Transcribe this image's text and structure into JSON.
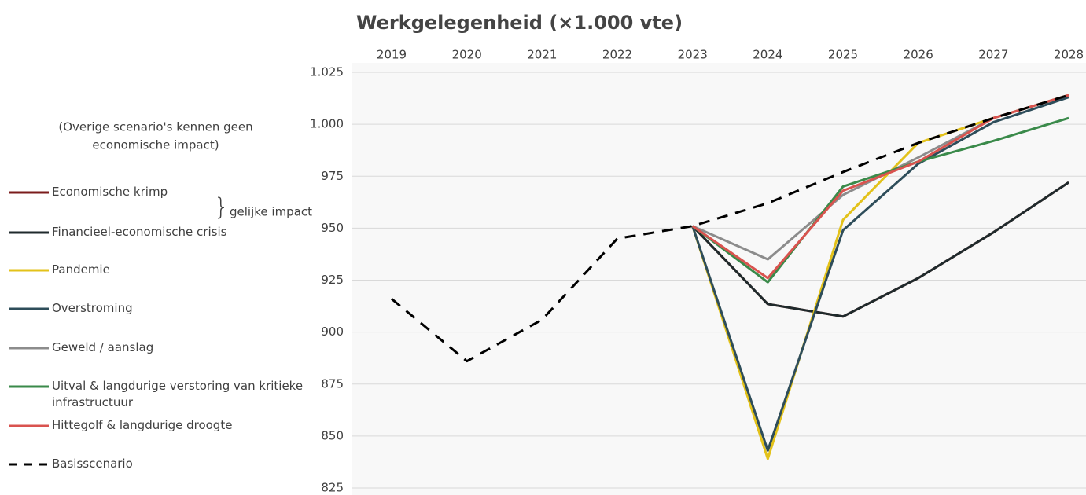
{
  "chart_data": {
    "type": "line",
    "title": "Werkgelegenheid (×1.000 vte)",
    "annotations": [
      {
        "lines": [
          "(Overige scenario's kennen geen",
          "economische impact)"
        ]
      },
      {
        "text": "gelijke impact"
      }
    ],
    "categories": [
      "2019",
      "2020",
      "2021",
      "2022",
      "2023",
      "2024",
      "2025",
      "2026",
      "2027",
      "2028"
    ],
    "series": [
      {
        "name": "Economische krimp",
        "color": "#7b1c1c",
        "values": [
          null,
          null,
          null,
          null,
          951,
          913.5,
          907.5,
          926,
          948,
          972
        ]
      },
      {
        "name": "Financieel-economische crisis",
        "color": "#1f2a2c",
        "values": [
          null,
          null,
          null,
          null,
          951,
          913.5,
          907.5,
          926,
          948,
          972
        ]
      },
      {
        "name": "Pandemie",
        "color": "#e3c21a",
        "values": [
          null,
          null,
          null,
          null,
          951,
          839,
          954,
          991,
          1003,
          1014
        ]
      },
      {
        "name": "Overstroming",
        "color": "#2e4d5a",
        "values": [
          null,
          null,
          null,
          null,
          951,
          843,
          949,
          981,
          1001,
          1013
        ]
      },
      {
        "name": "Geweld / aanslag",
        "color": "#8c8c8c",
        "values": [
          null,
          null,
          null,
          null,
          951,
          935,
          966,
          984,
          1003,
          1014
        ]
      },
      {
        "name": "Uitval & langdurige verstoring van kritieke infrastructuur",
        "color": "#3a8a4a",
        "values": [
          null,
          null,
          null,
          null,
          951,
          924,
          970,
          982,
          992,
          1003
        ]
      },
      {
        "name": "Hittegolf & langdurige droogte",
        "color": "#d9534f",
        "values": [
          null,
          null,
          null,
          null,
          951,
          926,
          968,
          982,
          1003,
          1014
        ]
      },
      {
        "name": "Basisscenario",
        "color": "#000000",
        "dashed": true,
        "values": [
          916,
          886,
          906,
          945,
          951,
          962,
          977,
          991,
          1003,
          1014
        ]
      }
    ],
    "ylim": [
      825,
      1025
    ],
    "yticks": [
      825,
      850,
      875,
      900,
      925,
      950,
      975,
      {
        "value": 1000,
        "label": "1.000"
      },
      {
        "value": 1025,
        "label": "1.025"
      }
    ],
    "grid": true
  }
}
